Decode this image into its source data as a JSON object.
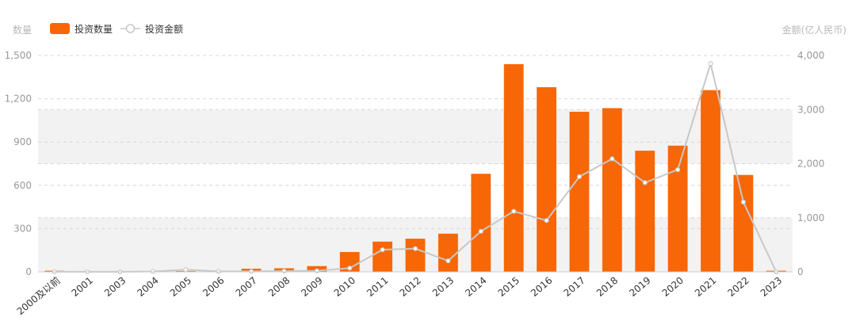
{
  "chart_data": {
    "type": "bar",
    "left_axis_title": "数量",
    "right_axis_title": "金额(亿人民币)",
    "categories": [
      "2000及以前",
      "2001",
      "2003",
      "2004",
      "2005",
      "2006",
      "2007",
      "2008",
      "2009",
      "2010",
      "2011",
      "2012",
      "2013",
      "2014",
      "2015",
      "2016",
      "2017",
      "2018",
      "2019",
      "2020",
      "2021",
      "2022",
      "2023"
    ],
    "series": [
      {
        "name": "投资数量",
        "kind": "bar",
        "axis": "left",
        "color": "#f76707",
        "values": [
          8,
          2,
          2,
          3,
          6,
          4,
          22,
          25,
          40,
          138,
          210,
          230,
          265,
          680,
          1440,
          1280,
          1110,
          1135,
          840,
          875,
          1260,
          672,
          8
        ]
      },
      {
        "name": "投资金额",
        "kind": "line",
        "axis": "right",
        "color": "#c8c8c8",
        "values": [
          3,
          1,
          1,
          8,
          40,
          10,
          10,
          15,
          20,
          70,
          410,
          430,
          205,
          750,
          1120,
          950,
          1760,
          2090,
          1650,
          1890,
          3850,
          1290,
          0
        ]
      }
    ],
    "left_axis": {
      "min": 0,
      "max": 1500,
      "ticks": [
        0,
        300,
        600,
        900,
        1200,
        1500
      ],
      "tick_labels": [
        "0",
        "300",
        "600",
        "900",
        "1,200",
        "1,500"
      ]
    },
    "right_axis": {
      "min": 0,
      "max": 4000,
      "ticks": [
        0,
        1000,
        2000,
        3000,
        4000
      ],
      "tick_labels": [
        "0",
        "1,000",
        "2,000",
        "3,000",
        "4,000"
      ]
    },
    "grid": true,
    "legend_position": "top-left"
  }
}
